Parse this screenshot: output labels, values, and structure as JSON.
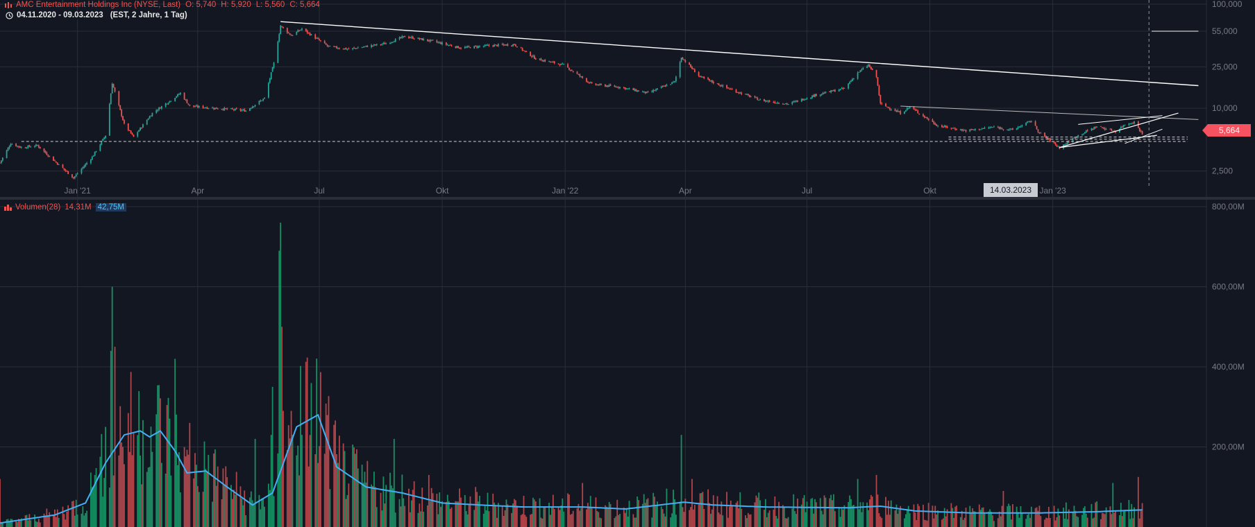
{
  "header": {
    "title": "AMC Entertainment Holdings Inc (NYSE, Last)",
    "open": "O: 5,740",
    "high": "H: 5,920",
    "low": "L: 5,560",
    "close": "C: 5,664",
    "range": "04.11.2020 - 09.03.2023",
    "timezone": "(EST, 2 Jahre, 1 Tag)"
  },
  "volume_legend": {
    "name": "Volumen(28)",
    "value": "14,31M",
    "ma_value": "42,75M"
  },
  "last_price_label": "5,664",
  "crosshair_date_label": "14.03.2023",
  "colors": {
    "up": "#26a69a",
    "down": "#ef5350",
    "up_volume": "#1a9c6a",
    "down_volume": "#c44a4e",
    "ma_line": "#42b0f5",
    "background": "#131722",
    "grid": "#2a2e39",
    "text": "#787b86",
    "trendline": "#ffffff",
    "price_tag": "#f7525f"
  },
  "icons": {
    "symbol": "exchange-icon",
    "clock": "clock-icon",
    "volume": "bars-icon"
  },
  "chart_data": [
    {
      "type": "candlestick",
      "title": "AMC Entertainment Holdings Inc (NYSE, Last)",
      "scale": "log",
      "ylim": [
        1800,
        100000
      ],
      "y_ticks": [
        {
          "value": 100000,
          "label": "100,000"
        },
        {
          "value": 55000,
          "label": "55,000"
        },
        {
          "value": 25000,
          "label": "25,000"
        },
        {
          "value": 10000,
          "label": "10,000"
        },
        {
          "value": 2500,
          "label": "2,500"
        }
      ],
      "x_ticks": [
        {
          "date": "2021-01-01",
          "label": "Jan '21"
        },
        {
          "date": "2021-04-01",
          "label": "Apr"
        },
        {
          "date": "2021-07-01",
          "label": "Jul"
        },
        {
          "date": "2021-10-01",
          "label": "Okt"
        },
        {
          "date": "2022-01-01",
          "label": "Jan '22"
        },
        {
          "date": "2022-04-01",
          "label": "Apr"
        },
        {
          "date": "2022-07-01",
          "label": "Jul"
        },
        {
          "date": "2022-10-01",
          "label": "Okt"
        },
        {
          "date": "2023-01-01",
          "label": "Jan '23"
        }
      ],
      "xlim": [
        "2020-11-04",
        "2023-04-26"
      ],
      "price_path": [
        [
          "2020-11-04",
          3000
        ],
        [
          "2020-11-12",
          4600
        ],
        [
          "2020-11-20",
          4200
        ],
        [
          "2020-12-02",
          4400
        ],
        [
          "2020-12-15",
          3100
        ],
        [
          "2020-12-29",
          2150
        ],
        [
          "2021-01-12",
          3400
        ],
        [
          "2021-01-22",
          5500
        ],
        [
          "2021-01-27",
          17500
        ],
        [
          "2021-02-05",
          7000
        ],
        [
          "2021-02-12",
          5300
        ],
        [
          "2021-02-26",
          9000
        ],
        [
          "2021-03-12",
          12000
        ],
        [
          "2021-03-19",
          14000
        ],
        [
          "2021-03-26",
          10500
        ],
        [
          "2021-04-15",
          10000
        ],
        [
          "2021-05-07",
          9500
        ],
        [
          "2021-05-21",
          12500
        ],
        [
          "2021-05-28",
          27000
        ],
        [
          "2021-06-02",
          62000
        ],
        [
          "2021-06-10",
          50000
        ],
        [
          "2021-06-18",
          58000
        ],
        [
          "2021-07-08",
          39000
        ],
        [
          "2021-07-23",
          37000
        ],
        [
          "2021-08-20",
          42000
        ],
        [
          "2021-09-03",
          49000
        ],
        [
          "2021-09-24",
          44000
        ],
        [
          "2021-10-15",
          38000
        ],
        [
          "2021-11-05",
          40000
        ],
        [
          "2021-11-24",
          41000
        ],
        [
          "2021-12-10",
          30000
        ],
        [
          "2021-12-31",
          26000
        ],
        [
          "2022-01-21",
          17000
        ],
        [
          "2022-02-11",
          16000
        ],
        [
          "2022-03-04",
          14000
        ],
        [
          "2022-03-24",
          18000
        ],
        [
          "2022-03-29",
          31000
        ],
        [
          "2022-04-12",
          20000
        ],
        [
          "2022-05-06",
          15000
        ],
        [
          "2022-05-27",
          12000
        ],
        [
          "2022-06-17",
          11000
        ],
        [
          "2022-07-08",
          13500
        ],
        [
          "2022-07-29",
          15500
        ],
        [
          "2022-08-08",
          22000
        ],
        [
          "2022-08-16",
          26000
        ],
        [
          "2022-08-22",
          20000
        ],
        [
          "2022-08-25",
          11000
        ],
        [
          "2022-09-09",
          9000
        ],
        [
          "2022-09-16",
          10300
        ],
        [
          "2022-10-07",
          6800
        ],
        [
          "2022-10-28",
          6100
        ],
        [
          "2022-11-18",
          6600
        ],
        [
          "2022-12-02",
          6200
        ],
        [
          "2022-12-16",
          7600
        ],
        [
          "2022-12-22",
          5800
        ],
        [
          "2023-01-06",
          4200
        ],
        [
          "2023-01-20",
          5500
        ],
        [
          "2023-02-03",
          6700
        ],
        [
          "2023-02-17",
          6000
        ],
        [
          "2023-02-24",
          7000
        ],
        [
          "2023-03-03",
          7400
        ],
        [
          "2023-03-09",
          5664
        ]
      ]
    },
    {
      "type": "bar",
      "title": "Volumen(28)",
      "ylim": [
        0,
        800000000
      ],
      "y_ticks": [
        {
          "value": 200000000,
          "label": "200,00M"
        },
        {
          "value": 400000000,
          "label": "400,00M"
        },
        {
          "value": 600000000,
          "label": "600,00M"
        },
        {
          "value": 800000000,
          "label": "800,00M"
        }
      ],
      "volume_peaks": [
        [
          "2020-11-04",
          120000000
        ],
        [
          "2021-01-14",
          130000000
        ],
        [
          "2021-01-22",
          250000000
        ],
        [
          "2021-01-26",
          440000000
        ],
        [
          "2021-01-27",
          600000000
        ],
        [
          "2021-01-29",
          450000000
        ],
        [
          "2021-02-04",
          200000000
        ],
        [
          "2021-02-24",
          150000000
        ],
        [
          "2021-03-05",
          160000000
        ],
        [
          "2021-03-15",
          420000000
        ],
        [
          "2021-03-26",
          260000000
        ],
        [
          "2021-04-09",
          180000000
        ],
        [
          "2021-05-14",
          220000000
        ],
        [
          "2021-05-26",
          230000000
        ],
        [
          "2021-05-27",
          350000000
        ],
        [
          "2021-06-01",
          690000000
        ],
        [
          "2021-06-02",
          760000000
        ],
        [
          "2021-06-03",
          500000000
        ],
        [
          "2021-06-04",
          290000000
        ],
        [
          "2021-06-10",
          290000000
        ],
        [
          "2021-06-18",
          230000000
        ],
        [
          "2021-06-30",
          160000000
        ],
        [
          "2021-07-15",
          160000000
        ],
        [
          "2021-08-26",
          220000000
        ],
        [
          "2021-09-21",
          130000000
        ],
        [
          "2021-10-26",
          100000000
        ],
        [
          "2022-01-14",
          110000000
        ],
        [
          "2022-03-29",
          230000000
        ],
        [
          "2022-04-06",
          120000000
        ],
        [
          "2022-08-08",
          120000000
        ],
        [
          "2022-08-22",
          130000000
        ],
        [
          "2022-11-25",
          90000000
        ],
        [
          "2023-02-15",
          110000000
        ],
        [
          "2023-03-06",
          125000000
        ]
      ],
      "moving_average": {
        "name": "Volumen(28)",
        "points": [
          [
            "2020-11-04",
            10000000
          ],
          [
            "2020-12-15",
            30000000
          ],
          [
            "2021-01-07",
            60000000
          ],
          [
            "2021-01-22",
            160000000
          ],
          [
            "2021-02-05",
            230000000
          ],
          [
            "2021-02-17",
            240000000
          ],
          [
            "2021-02-24",
            225000000
          ],
          [
            "2021-03-04",
            240000000
          ],
          [
            "2021-03-15",
            190000000
          ],
          [
            "2021-03-24",
            135000000
          ],
          [
            "2021-04-07",
            140000000
          ],
          [
            "2021-04-23",
            100000000
          ],
          [
            "2021-05-12",
            55000000
          ],
          [
            "2021-05-27",
            85000000
          ],
          [
            "2021-06-14",
            250000000
          ],
          [
            "2021-06-30",
            280000000
          ],
          [
            "2021-07-14",
            150000000
          ],
          [
            "2021-08-05",
            100000000
          ],
          [
            "2021-09-01",
            85000000
          ],
          [
            "2021-10-01",
            60000000
          ],
          [
            "2021-10-29",
            55000000
          ],
          [
            "2021-12-01",
            50000000
          ],
          [
            "2022-01-14",
            50000000
          ],
          [
            "2022-02-15",
            45000000
          ],
          [
            "2022-03-31",
            62000000
          ],
          [
            "2022-04-22",
            55000000
          ],
          [
            "2022-05-31",
            50000000
          ],
          [
            "2022-08-01",
            48000000
          ],
          [
            "2022-08-25",
            52000000
          ],
          [
            "2022-09-20",
            40000000
          ],
          [
            "2022-11-01",
            35000000
          ],
          [
            "2022-12-20",
            35000000
          ],
          [
            "2023-02-01",
            38000000
          ],
          [
            "2023-03-09",
            42750000
          ]
        ]
      }
    }
  ]
}
